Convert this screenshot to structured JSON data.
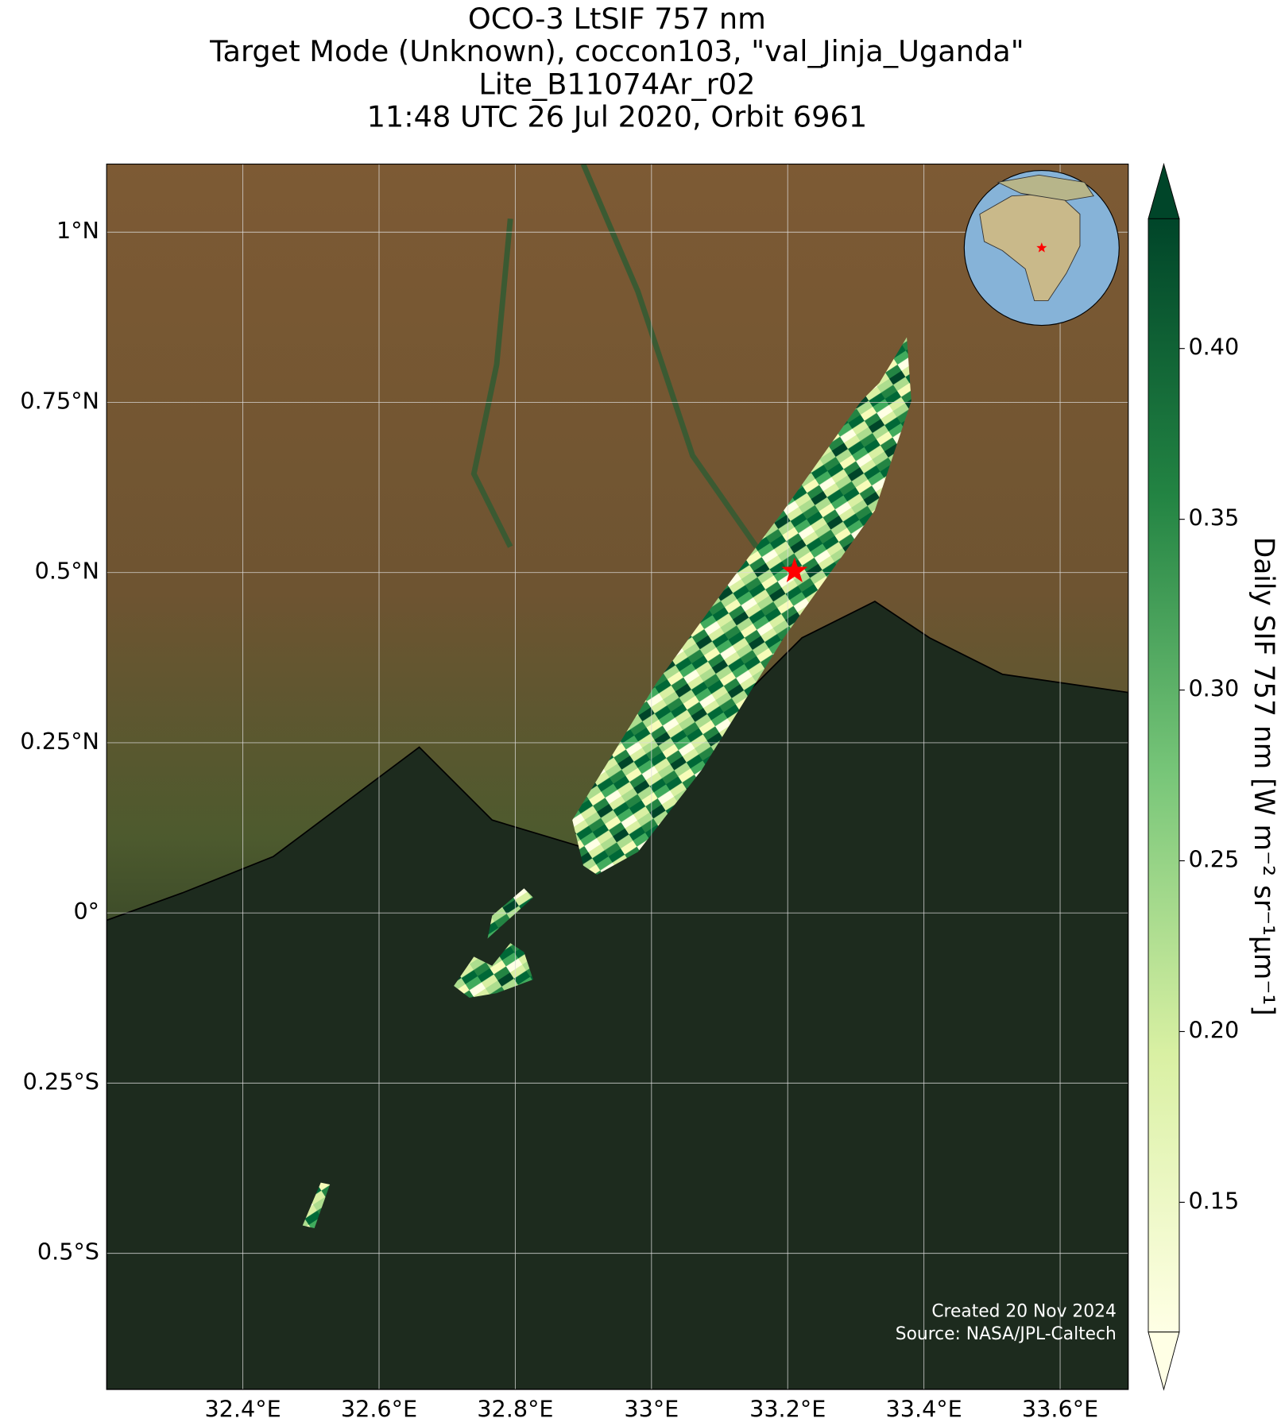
{
  "chart_data": {
    "type": "map",
    "title": [
      "OCO-3 LtSIF 757 nm",
      "Target Mode (Unknown), coccon103, \"val_Jinja_Uganda\"",
      "Lite_B11074Ar_r02",
      "11:48 UTC 26 Jul 2020, Orbit 6961"
    ],
    "xlim": [
      32.2,
      33.7
    ],
    "ylim": [
      -0.7,
      1.1
    ],
    "xticks": [
      {
        "value": 32.4,
        "label": "32.4°E"
      },
      {
        "value": 32.6,
        "label": "32.6°E"
      },
      {
        "value": 32.8,
        "label": "32.8°E"
      },
      {
        "value": 33.0,
        "label": "33°E"
      },
      {
        "value": 33.2,
        "label": "33.2°E"
      },
      {
        "value": 33.4,
        "label": "33.4°E"
      },
      {
        "value": 33.6,
        "label": "33.6°E"
      }
    ],
    "yticks": [
      {
        "value": 1,
        "label": "1°N"
      },
      {
        "value": 0.75,
        "label": "0.75°N"
      },
      {
        "value": 0.5,
        "label": "0.5°N"
      },
      {
        "value": 0.25,
        "label": "0.25°N"
      },
      {
        "value": 0,
        "label": "0°"
      },
      {
        "value": -0.25,
        "label": "0.25°S"
      },
      {
        "value": -0.5,
        "label": "0.5°S"
      }
    ],
    "grid": true,
    "colorbar": {
      "label": "Daily SIF 757 nm [W m⁻² sr⁻¹μm⁻¹]",
      "lim": [
        0.112,
        0.438
      ],
      "ticks": [
        {
          "value": 0.4,
          "label": "0.40"
        },
        {
          "value": 0.35,
          "label": "0.35"
        },
        {
          "value": 0.3,
          "label": "0.30"
        },
        {
          "value": 0.25,
          "label": "0.25"
        },
        {
          "value": 0.2,
          "label": "0.20"
        },
        0.15
      ]
    },
    "marker": {
      "x": 33.21,
      "y": 0.502
    },
    "footer": [
      "Created 20 Nov 2024",
      "Source: NASA/JPL-Caltech"
    ]
  }
}
